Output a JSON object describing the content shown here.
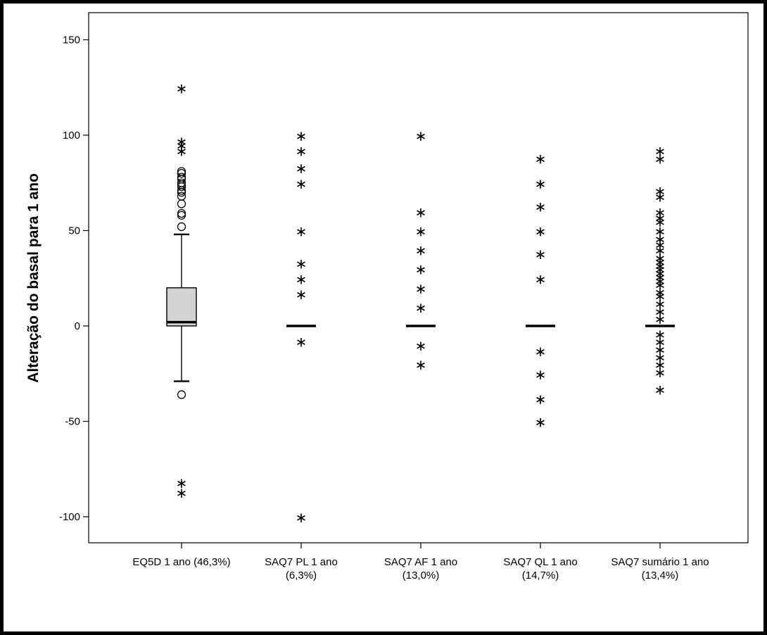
{
  "chart_data": {
    "type": "boxplot",
    "title": "",
    "xlabel": "",
    "ylabel": "Alteração do basal para 1 ano",
    "ylim": [
      -125,
      160
    ],
    "yticks": [
      150,
      100,
      50,
      0,
      -50,
      -100
    ],
    "grid": false,
    "legend": "none",
    "categories": [
      {
        "label_line1": "EQ5D 1 ano (46,3%)",
        "label_line2": ""
      },
      {
        "label_line1": "SAQ7 PL 1 ano",
        "label_line2": "(6,3%)"
      },
      {
        "label_line1": "SAQ7 AF 1 ano",
        "label_line2": "(13,0%)"
      },
      {
        "label_line1": "SAQ7 QL 1 ano",
        "label_line2": "(14,7%)"
      },
      {
        "label_line1": "SAQ7 sumário 1 ano",
        "label_line2": "(13,4%)"
      }
    ],
    "series": [
      {
        "name": "EQ5D 1 ano (46,3%)",
        "whisker_low": -29,
        "q1": 0,
        "median": 2,
        "q3": 20,
        "whisker_high": 48,
        "outliers": [
          52,
          58,
          59,
          64,
          68,
          70,
          71,
          73,
          74,
          75,
          77,
          78,
          80,
          81,
          -36
        ],
        "extremes": [
          125,
          97,
          95,
          92,
          -82,
          -87
        ]
      },
      {
        "name": "SAQ7 PL 1 ano",
        "whisker_low": 0,
        "q1": 0,
        "median": 0,
        "q3": 0,
        "whisker_high": 0,
        "outliers": [],
        "extremes": [
          100,
          92,
          83,
          75,
          50,
          33,
          25,
          17,
          -8,
          -100
        ]
      },
      {
        "name": "SAQ7 AF 1 ano",
        "whisker_low": 0,
        "q1": 0,
        "median": 0,
        "q3": 0,
        "whisker_high": 0,
        "outliers": [],
        "extremes": [
          100,
          60,
          50,
          40,
          30,
          20,
          10,
          -10,
          -20
        ]
      },
      {
        "name": "SAQ7 QL 1 ano",
        "whisker_low": 0,
        "q1": 0,
        "median": 0,
        "q3": 0,
        "whisker_high": 0,
        "outliers": [],
        "extremes": [
          88,
          75,
          63,
          50,
          38,
          25,
          -13,
          -25,
          -38,
          -50
        ]
      },
      {
        "name": "SAQ7 sumário 1 ano",
        "whisker_low": 0,
        "q1": 0,
        "median": 0,
        "q3": 0,
        "whisker_high": 0,
        "outliers": [],
        "extremes": [
          92,
          88,
          71,
          68,
          60,
          57,
          55,
          50,
          46,
          43,
          40,
          36,
          34,
          32,
          30,
          28,
          26,
          24,
          22,
          18,
          16,
          12,
          8,
          4,
          -4,
          -8,
          -12,
          -16,
          -20,
          -24,
          -33
        ]
      }
    ]
  }
}
